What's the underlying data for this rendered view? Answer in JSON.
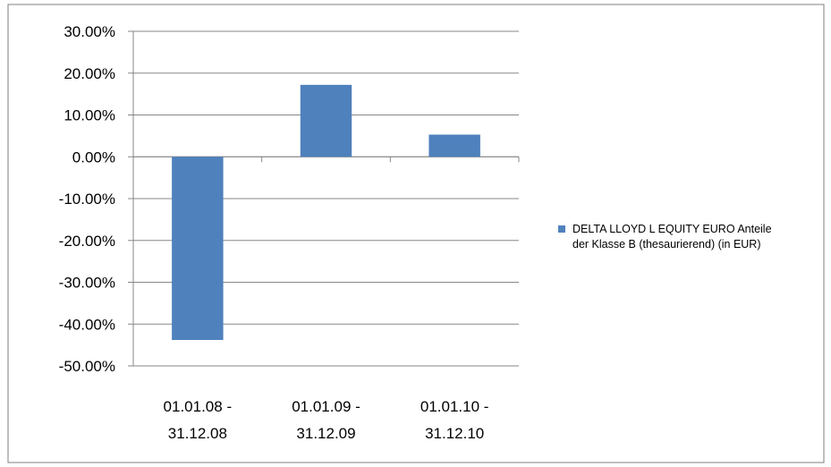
{
  "chart_data": {
    "type": "bar",
    "categories": [
      "01.01.08 -\n31.12.08",
      "01.01.09 -\n31.12.09",
      "01.01.10 -\n31.12.10"
    ],
    "series": [
      {
        "name": "DELTA LLOYD  L EQUITY  EURO  Anteile\nder Klasse B  (thesaurierend)  (in EUR)",
        "values": [
          -43.8,
          17.2,
          5.3
        ],
        "color": "#4f81bd"
      }
    ],
    "y_ticks": [
      "30.00%",
      "20.00%",
      "10.00%",
      "0.00%",
      "-10.00%",
      "-20.00%",
      "-30.00%",
      "-40.00%",
      "-50.00%"
    ],
    "ylim": [
      -50,
      30
    ],
    "y_unit": "%",
    "grid": true,
    "legend_position": "right"
  }
}
